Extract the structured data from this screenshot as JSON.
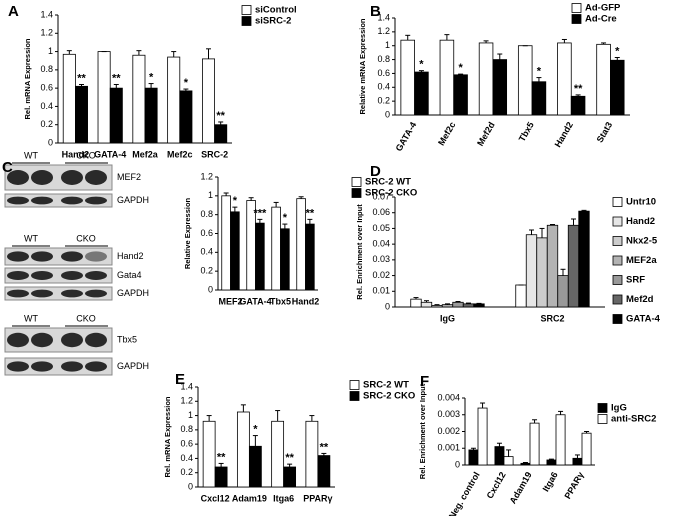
{
  "chart_data": [
    {
      "type": "bar",
      "panel": "A",
      "ylabel": "Rel. mRNA Expression",
      "categories": [
        "Hand2",
        "GATA-4",
        "Mef2a",
        "Mef2c",
        "SRC-2"
      ],
      "series": [
        {
          "name": "siControl",
          "color": "#ffffff",
          "values": [
            0.97,
            1.0,
            0.96,
            0.94,
            0.92
          ],
          "errors": [
            0.04,
            0.0,
            0.05,
            0.06,
            0.11
          ]
        },
        {
          "name": "siSRC-2",
          "color": "#000000",
          "values": [
            0.62,
            0.6,
            0.6,
            0.57,
            0.2
          ],
          "errors": [
            0.02,
            0.04,
            0.05,
            0.02,
            0.03
          ]
        }
      ],
      "annotations": [
        "**",
        "**",
        "*",
        "*",
        "**"
      ],
      "ylim": [
        0,
        1.4
      ],
      "yticks": [
        0,
        0.2,
        0.4,
        0.6,
        0.8,
        1,
        1.2,
        1.4
      ]
    },
    {
      "type": "bar",
      "panel": "B",
      "ylabel": "Relative mRNA Expression",
      "categories": [
        "GATA-4",
        "Mef2c",
        "Mef2d",
        "Tbx5",
        "Hand2",
        "Stat3"
      ],
      "series": [
        {
          "name": "Ad-GFP",
          "color": "#ffffff",
          "values": [
            1.08,
            1.08,
            1.04,
            1.0,
            1.04,
            1.02
          ],
          "errors": [
            0.07,
            0.08,
            0.03,
            0.0,
            0.05,
            0.02
          ]
        },
        {
          "name": "Ad-Cre",
          "color": "#000000",
          "values": [
            0.62,
            0.58,
            0.8,
            0.48,
            0.27,
            0.79
          ],
          "errors": [
            0.02,
            0.01,
            0.08,
            0.06,
            0.02,
            0.04
          ]
        }
      ],
      "annotations": [
        "*",
        "*",
        null,
        "*",
        "**",
        "*"
      ],
      "ylim": [
        0,
        1.4
      ],
      "yticks": [
        0,
        0.2,
        0.4,
        0.6,
        0.8,
        1,
        1.2,
        1.4
      ]
    },
    {
      "type": "bar",
      "panel": "C",
      "ylabel": "Relative Expression",
      "categories": [
        "MEF2",
        "GATA-4",
        "Tbx5",
        "Hand2"
      ],
      "series": [
        {
          "name": "SRC-2 WT",
          "color": "#ffffff",
          "values": [
            1.0,
            0.95,
            0.88,
            0.97
          ],
          "errors": [
            0.03,
            0.03,
            0.05,
            0.02
          ]
        },
        {
          "name": "SRC-2 CKO",
          "color": "#000000",
          "values": [
            0.83,
            0.71,
            0.65,
            0.7
          ],
          "errors": [
            0.05,
            0.04,
            0.05,
            0.05
          ]
        }
      ],
      "annotations": [
        "*",
        "***",
        "*",
        "**"
      ],
      "ylim": [
        0,
        1.2
      ],
      "yticks": [
        0,
        0.2,
        0.4,
        0.6,
        0.8,
        1,
        1.2
      ]
    },
    {
      "type": "bar",
      "panel": "D",
      "ylabel": "Rel. Enrichment over Input",
      "categories": [
        "IgG",
        "SRC2"
      ],
      "series": [
        {
          "name": "Untr10",
          "color": "#ffffff",
          "values": [
            0.005,
            0.014
          ],
          "errors": [
            0.001,
            0.0
          ]
        },
        {
          "name": "Hand2",
          "color": "#e6e6e6",
          "values": [
            0.003,
            0.046
          ],
          "errors": [
            0.001,
            0.003
          ]
        },
        {
          "name": "Nkx2-5",
          "color": "#cccccc",
          "values": [
            0.001,
            0.044
          ],
          "errors": [
            0.0005,
            0.006
          ]
        },
        {
          "name": "MEF2a",
          "color": "#b3b3b3",
          "values": [
            0.0015,
            0.052
          ],
          "errors": [
            0.0005,
            0.0005
          ]
        },
        {
          "name": "SRF",
          "color": "#999999",
          "values": [
            0.003,
            0.02
          ],
          "errors": [
            0.0005,
            0.004
          ]
        },
        {
          "name": "Mef2d",
          "color": "#666666",
          "values": [
            0.002,
            0.052
          ],
          "errors": [
            0.0005,
            0.004
          ]
        },
        {
          "name": "GATA-4",
          "color": "#000000",
          "values": [
            0.002,
            0.061
          ],
          "errors": [
            0.0003,
            0.0005
          ]
        }
      ],
      "ylim": [
        0,
        0.07
      ],
      "yticks": [
        0,
        0.01,
        0.02,
        0.03,
        0.04,
        0.05,
        0.06,
        0.07
      ]
    },
    {
      "type": "bar",
      "panel": "E",
      "ylabel": "Rel. mRNA Expression",
      "categories": [
        "Cxcl12",
        "Adam19",
        "Itga6",
        "PPARγ"
      ],
      "series": [
        {
          "name": "SRC-2 WT",
          "color": "#ffffff",
          "values": [
            0.92,
            1.05,
            0.92,
            0.92
          ],
          "errors": [
            0.08,
            0.1,
            0.15,
            0.08
          ]
        },
        {
          "name": "SRC-2 CKO",
          "color": "#000000",
          "values": [
            0.28,
            0.57,
            0.28,
            0.44
          ],
          "errors": [
            0.05,
            0.15,
            0.04,
            0.03
          ]
        }
      ],
      "annotations": [
        "**",
        "*",
        "**",
        "**"
      ],
      "ylim": [
        0,
        1.4
      ],
      "yticks": [
        0,
        0.2,
        0.4,
        0.6,
        0.8,
        1,
        1.2,
        1.4
      ]
    },
    {
      "type": "bar",
      "panel": "F",
      "ylabel": "Rel. Enrichment over Input",
      "categories": [
        "Neg. control",
        "Cxcl12",
        "Adam19",
        "Itga6",
        "PPARγ"
      ],
      "series": [
        {
          "name": "IgG",
          "color": "#000000",
          "values": [
            0.0009,
            0.0011,
            0.0001,
            0.0003,
            0.0004
          ],
          "errors": [
            0.0001,
            0.0002,
            5e-05,
            5e-05,
            0.0002
          ]
        },
        {
          "name": "anti-SRC2",
          "color": "#ffffff",
          "values": [
            0.0034,
            0.0005,
            0.0025,
            0.003,
            0.0019
          ],
          "errors": [
            0.0003,
            0.0004,
            0.0002,
            0.0002,
            0.0001
          ]
        }
      ],
      "ylim": [
        0,
        0.004
      ],
      "yticks": [
        0,
        0.001,
        0.002,
        0.003,
        0.004
      ]
    }
  ],
  "blots": {
    "groups": [
      {
        "header": [
          "WT",
          "CKO"
        ],
        "rows": [
          "MEF2",
          "GAPDH"
        ]
      },
      {
        "header": [
          "WT",
          "CKO"
        ],
        "rows": [
          "Hand2",
          "Gata4",
          "GAPDH"
        ]
      },
      {
        "header": [
          "WT",
          "CKO"
        ],
        "rows": [
          "Tbx5",
          "GAPDH"
        ]
      }
    ]
  }
}
